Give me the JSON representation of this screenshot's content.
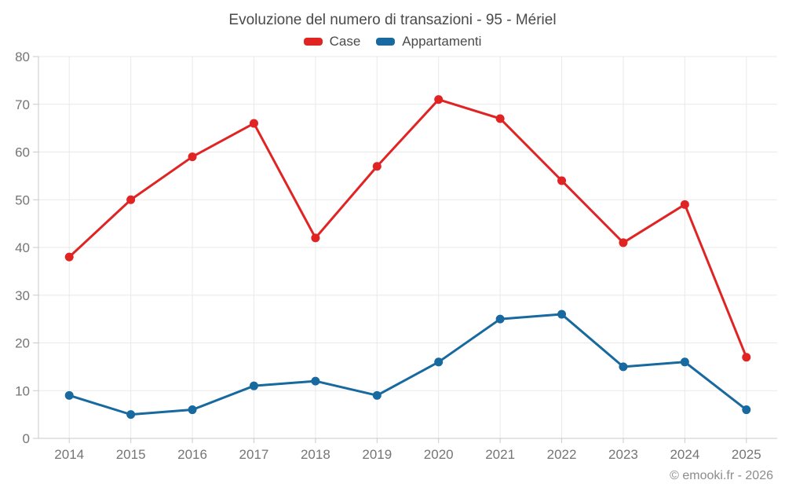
{
  "page": {
    "footer": "© emooki.fr - 2026"
  },
  "chart_data": {
    "type": "line",
    "title": "Evoluzione del numero di transazioni - 95 - Mériel",
    "categories": [
      "2014",
      "2015",
      "2016",
      "2017",
      "2018",
      "2019",
      "2020",
      "2021",
      "2022",
      "2023",
      "2024",
      "2025"
    ],
    "series": [
      {
        "name": "Case",
        "color": "#e02424",
        "values": [
          38,
          50,
          59,
          66,
          42,
          57,
          71,
          67,
          54,
          41,
          49,
          17
        ]
      },
      {
        "name": "Appartamenti",
        "color": "#17699f",
        "values": [
          9,
          5,
          6,
          11,
          12,
          9,
          16,
          25,
          26,
          15,
          16,
          6
        ]
      }
    ],
    "xlabel": "",
    "ylabel": "",
    "ylim": [
      0,
      80
    ],
    "y_tick_step": 10,
    "grid": true,
    "legend_position": "top-center",
    "grid_color": "#e9e9e9",
    "axis_color": "#c9c9c9",
    "label_color": "#757575"
  }
}
